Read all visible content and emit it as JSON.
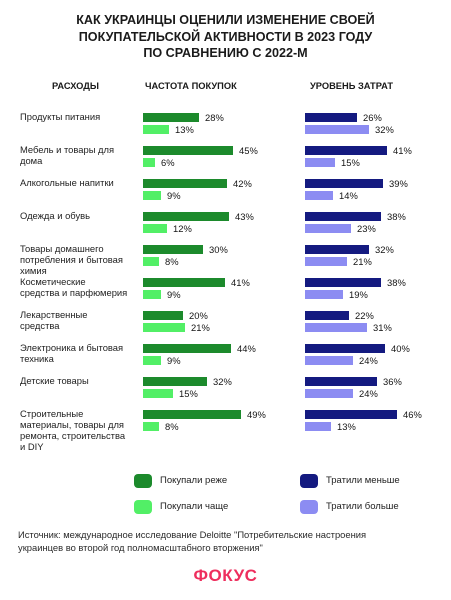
{
  "headers": {
    "expenses": "РАСХОДЫ",
    "frequency": "ЧАСТОТА ПОКУПОК",
    "spending": "УРОВЕНЬ ЗАТРАТ"
  },
  "chart_data": {
    "type": "bar",
    "orientation": "horizontal",
    "title": "КАК УКРАИНЦЫ ОЦЕНИЛИ ИЗМЕНЕНИЕ СВОЕЙ\nПОКУПАТЕЛЬСКОЙ АКТИВНОСТИ В 2023 ГОДУ\nПО СРАВНЕНИЮ С 2022-М",
    "unit": "%",
    "categories": [
      "Продукты питания",
      "Мебель и товары для\nдома",
      "Алкогольные напитки",
      "Одежда и обувь",
      "Товары домашнего\nпотребления и бытовая\nхимия",
      "Косметические\nсредства и парфюмерия",
      "Лекарственные\nсредства",
      "Электроника и бытовая\nтехника",
      "Детские товары",
      "Строительные\nматериалы, товары для\nремонта, строительства\nи DIY"
    ],
    "series": [
      {
        "name": "Покупали реже",
        "group": "frequency",
        "color": "#1c8a2c",
        "values": [
          28,
          45,
          42,
          43,
          30,
          41,
          20,
          44,
          32,
          49
        ]
      },
      {
        "name": "Покупали чаще",
        "group": "frequency",
        "color": "#52ef66",
        "values": [
          13,
          6,
          9,
          12,
          8,
          9,
          21,
          9,
          15,
          8
        ]
      },
      {
        "name": "Тратили меньше",
        "group": "spending",
        "color": "#141a80",
        "values": [
          26,
          41,
          39,
          38,
          32,
          38,
          22,
          40,
          36,
          46
        ]
      },
      {
        "name": "Тратили больше",
        "group": "spending",
        "color": "#8c8cf2",
        "values": [
          32,
          15,
          14,
          23,
          21,
          19,
          31,
          24,
          24,
          13
        ]
      }
    ],
    "legend_position": "bottom",
    "grid": false
  },
  "source": "Источник: международное исследование Deloitte \"Потребительские настроения\nукраинцев во второй год полномасштабного вторжения\"",
  "logo": "ФОКУС",
  "colors": {
    "text": "#1a1a1a",
    "logo": "#ee2e5d",
    "background": "#ffffff"
  }
}
